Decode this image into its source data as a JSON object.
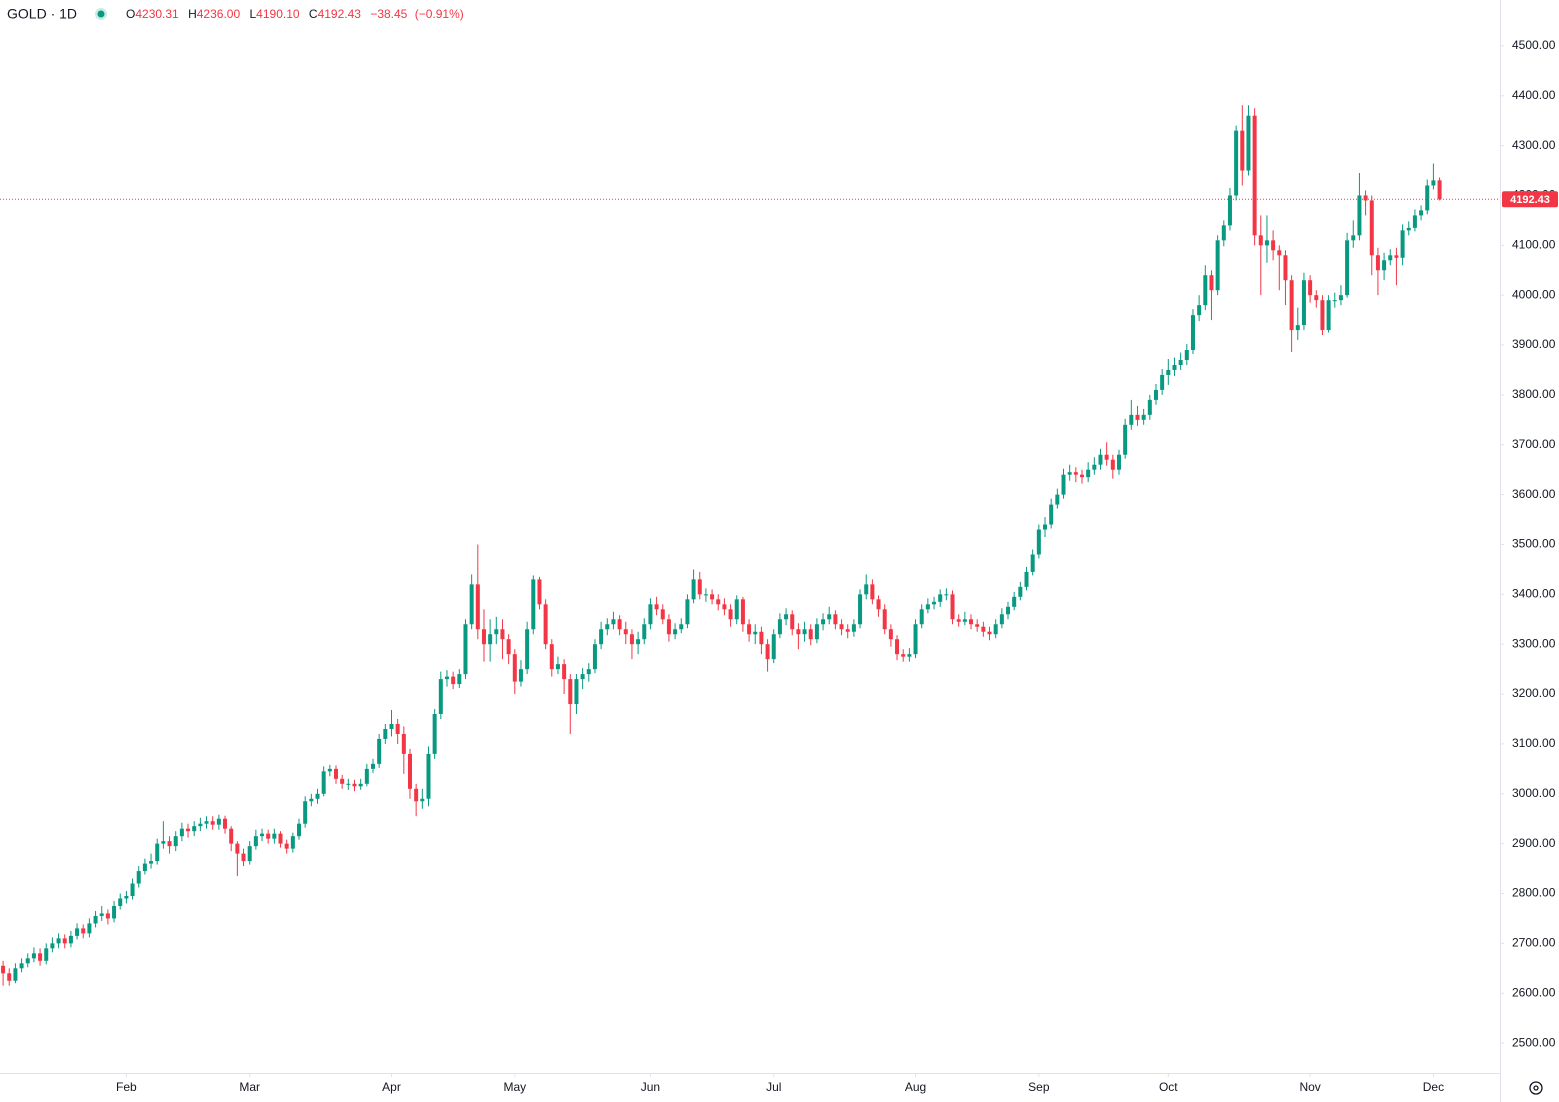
{
  "header": {
    "symbol": "GOLD · 1D",
    "open_label": "O",
    "open": 4230.31,
    "high_label": "H",
    "high": "4236.00",
    "low_label": "L",
    "low": "4190.10",
    "close_label": "C",
    "close": 4192.43,
    "change": "−38.45",
    "change_pct": "(−0.91%)"
  },
  "chart_data": {
    "type": "candlestick",
    "up_color": "#089981",
    "down_color": "#f23645",
    "xlim": [
      -0.5,
      242.8
    ],
    "ylim": [
      2440,
      4592
    ],
    "xticks": [
      {
        "value": 20,
        "label": "Feb"
      },
      {
        "value": 40,
        "label": "Mar"
      },
      {
        "value": 63,
        "label": "Apr"
      },
      {
        "value": 83,
        "label": "May"
      },
      {
        "value": 105,
        "label": "Jun"
      },
      {
        "value": 125,
        "label": "Jul"
      },
      {
        "value": 148,
        "label": "Aug"
      },
      {
        "value": 168,
        "label": "Sep"
      },
      {
        "value": 189,
        "label": "Oct"
      },
      {
        "value": 212,
        "label": "Nov"
      },
      {
        "value": 232,
        "label": "Dec"
      }
    ],
    "yticks": [
      {
        "value": 2500,
        "label": "2500.00"
      },
      {
        "value": 2600,
        "label": "2600.00"
      },
      {
        "value": 2700,
        "label": "2700.00"
      },
      {
        "value": 2800,
        "label": "2800.00"
      },
      {
        "value": 2900,
        "label": "2900.00"
      },
      {
        "value": 3000,
        "label": "3000.00"
      },
      {
        "value": 3100,
        "label": "3100.00"
      },
      {
        "value": 3200,
        "label": "3200.00"
      },
      {
        "value": 3300,
        "label": "3300.00"
      },
      {
        "value": 3400,
        "label": "3400.00"
      },
      {
        "value": 3500,
        "label": "3500.00"
      },
      {
        "value": 3600,
        "label": "3600.00"
      },
      {
        "value": 3700,
        "label": "3700.00"
      },
      {
        "value": 3800,
        "label": "3800.00"
      },
      {
        "value": 3900,
        "label": "3900.00"
      },
      {
        "value": 4000,
        "label": "4000.00"
      },
      {
        "value": 4100,
        "label": "4100.00"
      },
      {
        "value": 4200,
        "label": "4200.00"
      },
      {
        "value": 4300,
        "label": "4300.00"
      },
      {
        "value": 4400,
        "label": "4400.00"
      },
      {
        "value": 4500,
        "label": "4500.00"
      }
    ],
    "open": [
      2655,
      2640,
      2625,
      2650,
      2660,
      2670,
      2680,
      2665,
      2690,
      2700,
      2710,
      2700,
      2715,
      2730,
      2720,
      2740,
      2755,
      2760,
      2750,
      2775,
      2790,
      2795,
      2820,
      2845,
      2860,
      2865,
      2900,
      2905,
      2895,
      2915,
      2930,
      2925,
      2935,
      2940,
      2945,
      2938,
      2950,
      2930,
      2900,
      2880,
      2865,
      2895,
      2915,
      2920,
      2910,
      2920,
      2900,
      2890,
      2915,
      2940,
      2985,
      2990,
      3000,
      3045,
      3050,
      3030,
      3020,
      3020,
      3015,
      3020,
      3050,
      3060,
      3110,
      3130,
      3140,
      3120,
      3080,
      3010,
      2985,
      2990,
      3080,
      3160,
      3230,
      3235,
      3220,
      3240,
      3340,
      3420,
      3330,
      3300,
      3320,
      3330,
      3310,
      3280,
      3225,
      3250,
      3330,
      3430,
      3380,
      3300,
      3250,
      3260,
      3230,
      3180,
      3230,
      3240,
      3250,
      3300,
      3330,
      3340,
      3350,
      3330,
      3320,
      3300,
      3310,
      3340,
      3380,
      3370,
      3350,
      3320,
      3330,
      3340,
      3390,
      3430,
      3400,
      3400,
      3390,
      3380,
      3370,
      3350,
      3390,
      3340,
      3320,
      3325,
      3300,
      3270,
      3320,
      3350,
      3360,
      3330,
      3320,
      3330,
      3310,
      3340,
      3350,
      3360,
      3340,
      3330,
      3325,
      3340,
      3400,
      3420,
      3390,
      3370,
      3330,
      3310,
      3280,
      3275,
      3280,
      3340,
      3370,
      3380,
      3385,
      3400,
      3400,
      3350,
      3345,
      3350,
      3340,
      3335,
      3325,
      3320,
      3340,
      3360,
      3375,
      3395,
      3415,
      3445,
      3480,
      3530,
      3540,
      3580,
      3600,
      3640,
      3645,
      3640,
      3635,
      3650,
      3660,
      3680,
      3670,
      3650,
      3680,
      3740,
      3760,
      3750,
      3760,
      3790,
      3810,
      3840,
      3850,
      3860,
      3870,
      3890,
      3960,
      3980,
      4040,
      4010,
      4110,
      4140,
      4200,
      4330,
      4250,
      4360,
      4120,
      4100,
      4110,
      4090,
      4080,
      4030,
      3930,
      3940,
      4030,
      4000,
      3990,
      3930,
      3990,
      3990,
      4000,
      4110,
      4120,
      4200,
      4190,
      4080,
      4050,
      4070,
      4080,
      4075,
      4130,
      4135,
      4160,
      4170,
      4220,
      4230.31
    ],
    "high": [
      2665,
      2650,
      2660,
      2670,
      2680,
      2692,
      2690,
      2700,
      2712,
      2720,
      2718,
      2725,
      2740,
      2738,
      2750,
      2765,
      2775,
      2768,
      2785,
      2800,
      2805,
      2830,
      2855,
      2870,
      2880,
      2910,
      2945,
      2915,
      2925,
      2942,
      2940,
      2945,
      2952,
      2955,
      2955,
      2958,
      2956,
      2935,
      2905,
      2890,
      2905,
      2928,
      2930,
      2928,
      2930,
      2925,
      2908,
      2922,
      2950,
      2995,
      3000,
      3010,
      3055,
      3058,
      3057,
      3038,
      3030,
      3028,
      3030,
      3060,
      3070,
      3120,
      3140,
      3168,
      3150,
      3135,
      3090,
      3020,
      3010,
      3095,
      3170,
      3245,
      3248,
      3245,
      3250,
      3350,
      3440,
      3500,
      3370,
      3350,
      3355,
      3350,
      3320,
      3290,
      3268,
      3345,
      3438,
      3435,
      3390,
      3310,
      3275,
      3270,
      3240,
      3240,
      3252,
      3262,
      3310,
      3345,
      3352,
      3365,
      3358,
      3345,
      3330,
      3325,
      3352,
      3392,
      3395,
      3380,
      3360,
      3342,
      3352,
      3400,
      3450,
      3445,
      3412,
      3410,
      3400,
      3392,
      3380,
      3398,
      3395,
      3350,
      3340,
      3335,
      3310,
      3330,
      3362,
      3372,
      3368,
      3342,
      3345,
      3340,
      3352,
      3362,
      3375,
      3368,
      3350,
      3340,
      3350,
      3410,
      3440,
      3430,
      3398,
      3380,
      3340,
      3318,
      3290,
      3292,
      3350,
      3380,
      3392,
      3395,
      3410,
      3412,
      3408,
      3360,
      3365,
      3360,
      3350,
      3345,
      3335,
      3350,
      3372,
      3385,
      3405,
      3425,
      3455,
      3490,
      3540,
      3555,
      3592,
      3612,
      3652,
      3660,
      3655,
      3650,
      3665,
      3675,
      3692,
      3705,
      3680,
      3690,
      3752,
      3790,
      3778,
      3772,
      3800,
      3822,
      3852,
      3872,
      3875,
      3885,
      3902,
      3972,
      4000,
      4060,
      4050,
      4120,
      4150,
      4215,
      4340,
      4381,
      4381,
      4375,
      4160,
      4160,
      4130,
      4100,
      4090,
      4040,
      3975,
      4045,
      4040,
      4010,
      4000,
      4000,
      4005,
      4020,
      4125,
      4150,
      4245,
      4210,
      4200,
      4095,
      4085,
      4092,
      4095,
      4142,
      4148,
      4172,
      4180,
      4232,
      4264,
      4236
    ],
    "low": [
      2615,
      2615,
      2620,
      2642,
      2652,
      2662,
      2655,
      2658,
      2682,
      2690,
      2690,
      2692,
      2708,
      2710,
      2712,
      2732,
      2745,
      2738,
      2742,
      2768,
      2780,
      2788,
      2812,
      2838,
      2850,
      2858,
      2890,
      2880,
      2885,
      2905,
      2912,
      2915,
      2925,
      2930,
      2928,
      2928,
      2920,
      2885,
      2835,
      2855,
      2858,
      2888,
      2905,
      2900,
      2900,
      2892,
      2880,
      2882,
      2908,
      2932,
      2975,
      2980,
      2995,
      3035,
      3020,
      3010,
      3008,
      3005,
      3008,
      3015,
      3042,
      3052,
      3100,
      3115,
      3100,
      3040,
      2990,
      2955,
      2970,
      2975,
      3070,
      3150,
      3215,
      3210,
      3212,
      3230,
      3330,
      3310,
      3265,
      3265,
      3300,
      3270,
      3260,
      3200,
      3215,
      3240,
      3320,
      3370,
      3290,
      3235,
      3240,
      3200,
      3120,
      3160,
      3210,
      3225,
      3242,
      3290,
      3318,
      3330,
      3318,
      3300,
      3270,
      3280,
      3300,
      3330,
      3358,
      3340,
      3305,
      3310,
      3322,
      3332,
      3382,
      3390,
      3385,
      3380,
      3368,
      3358,
      3335,
      3340,
      3325,
      3305,
      3300,
      3280,
      3245,
      3262,
      3312,
      3338,
      3318,
      3290,
      3305,
      3298,
      3302,
      3328,
      3340,
      3330,
      3318,
      3312,
      3315,
      3332,
      3390,
      3380,
      3355,
      3320,
      3295,
      3268,
      3265,
      3265,
      3272,
      3332,
      3362,
      3370,
      3375,
      3388,
      3340,
      3335,
      3338,
      3330,
      3325,
      3315,
      3308,
      3312,
      3332,
      3350,
      3368,
      3388,
      3408,
      3438,
      3472,
      3515,
      3532,
      3572,
      3592,
      3628,
      3625,
      3622,
      3625,
      3640,
      3650,
      3658,
      3632,
      3640,
      3672,
      3730,
      3738,
      3740,
      3750,
      3780,
      3800,
      3820,
      3838,
      3850,
      3860,
      3882,
      3948,
      3970,
      3950,
      4000,
      4098,
      4130,
      4190,
      4220,
      4240,
      4100,
      4000,
      4065,
      4070,
      4010,
      3980,
      3886,
      3910,
      3930,
      3985,
      3975,
      3920,
      3925,
      3975,
      3980,
      3995,
      4095,
      4110,
      4160,
      4040,
      4000,
      4030,
      4060,
      4020,
      4060,
      4120,
      4128,
      4150,
      4162,
      4212,
      4190.1
    ],
    "close": [
      2640,
      2625,
      2650,
      2660,
      2670,
      2680,
      2665,
      2690,
      2700,
      2710,
      2700,
      2715,
      2730,
      2720,
      2740,
      2755,
      2760,
      2750,
      2775,
      2790,
      2795,
      2820,
      2845,
      2860,
      2865,
      2900,
      2905,
      2895,
      2915,
      2930,
      2925,
      2935,
      2940,
      2945,
      2938,
      2950,
      2930,
      2900,
      2880,
      2865,
      2895,
      2915,
      2920,
      2910,
      2920,
      2900,
      2890,
      2915,
      2940,
      2985,
      2990,
      3000,
      3045,
      3050,
      3030,
      3020,
      3020,
      3015,
      3020,
      3050,
      3060,
      3110,
      3130,
      3140,
      3120,
      3080,
      3010,
      2985,
      2990,
      3080,
      3160,
      3230,
      3235,
      3220,
      3240,
      3340,
      3420,
      3330,
      3300,
      3320,
      3330,
      3310,
      3280,
      3225,
      3250,
      3330,
      3430,
      3380,
      3300,
      3250,
      3260,
      3230,
      3180,
      3230,
      3240,
      3250,
      3300,
      3330,
      3340,
      3350,
      3330,
      3320,
      3300,
      3310,
      3340,
      3380,
      3370,
      3350,
      3320,
      3330,
      3340,
      3390,
      3430,
      3400,
      3400,
      3390,
      3380,
      3370,
      3350,
      3390,
      3340,
      3320,
      3325,
      3300,
      3270,
      3320,
      3350,
      3360,
      3330,
      3320,
      3330,
      3310,
      3340,
      3350,
      3360,
      3340,
      3330,
      3325,
      3340,
      3400,
      3420,
      3390,
      3370,
      3330,
      3310,
      3280,
      3275,
      3280,
      3340,
      3370,
      3380,
      3385,
      3400,
      3400,
      3350,
      3345,
      3350,
      3340,
      3335,
      3325,
      3320,
      3340,
      3360,
      3375,
      3395,
      3415,
      3445,
      3480,
      3530,
      3540,
      3580,
      3600,
      3640,
      3645,
      3640,
      3635,
      3650,
      3660,
      3680,
      3670,
      3650,
      3680,
      3740,
      3760,
      3750,
      3760,
      3790,
      3810,
      3840,
      3850,
      3860,
      3870,
      3890,
      3960,
      3980,
      4040,
      4010,
      4110,
      4140,
      4200,
      4330,
      4250,
      4360,
      4120,
      4100,
      4110,
      4090,
      4080,
      4030,
      3930,
      3940,
      4030,
      4000,
      3990,
      3930,
      3990,
      3990,
      4000,
      4110,
      4120,
      4200,
      4190,
      4080,
      4050,
      4070,
      4080,
      4075,
      4130,
      4135,
      4160,
      4170,
      4220,
      4230.31,
      4192.43
    ]
  }
}
